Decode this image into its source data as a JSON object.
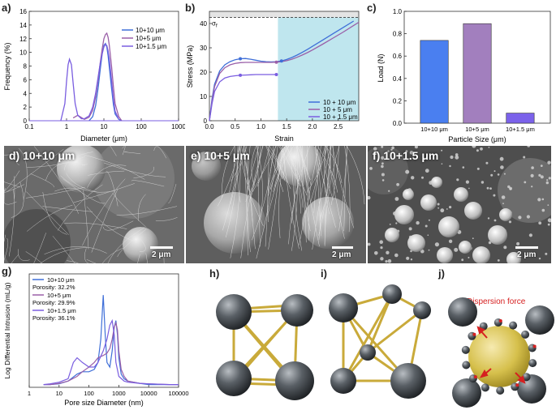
{
  "panels": {
    "a": "a)",
    "b": "b)",
    "c": "c)",
    "d": "d)",
    "e": "e)",
    "f": "f)",
    "g": "g)",
    "h": "h)",
    "i": "i)",
    "j": "j)"
  },
  "chart_data": [
    {
      "id": "a",
      "type": "line",
      "title": "",
      "xlabel": "Diameter (μm)",
      "ylabel": "Frequency (%)",
      "xscale": "log",
      "xlim": [
        0.1,
        1000
      ],
      "ylim": [
        0,
        16
      ],
      "xticks": [
        "0.1",
        "1",
        "10",
        "100",
        "1000"
      ],
      "yticks": [
        "0",
        "2",
        "4",
        "6",
        "8",
        "10",
        "12",
        "14",
        "16"
      ],
      "legend_position": "top-right",
      "series": [
        {
          "name": "10+10 μm",
          "color": "#3f6fd8",
          "x": [
            4,
            5,
            6,
            7,
            8,
            9,
            10,
            11,
            12,
            13,
            14,
            16,
            18,
            20,
            25,
            30
          ],
          "y": [
            0,
            0.6,
            2.2,
            4.8,
            7.5,
            9.8,
            11.0,
            11.3,
            10.8,
            9.5,
            7.8,
            4.8,
            2.4,
            1.0,
            0.2,
            0
          ]
        },
        {
          "name": "10+5 μm",
          "color": "#9a5fa8",
          "x": [
            1.5,
            2,
            3,
            4,
            5,
            6,
            7,
            8,
            9,
            10,
            11,
            12,
            13,
            14,
            16,
            18,
            20,
            25,
            30
          ],
          "y": [
            0.4,
            0.8,
            0.2,
            0.5,
            1.5,
            3.5,
            6.0,
            8.5,
            10.5,
            12.0,
            12.6,
            12.8,
            12.2,
            11.0,
            8.0,
            5.0,
            2.5,
            0.6,
            0
          ]
        },
        {
          "name": "10+1.5 μm",
          "color": "#7a5ee0",
          "x": [
            0.7,
            0.9,
            1.0,
            1.1,
            1.2,
            1.35,
            1.5,
            1.7,
            2.0,
            2.5,
            3,
            4,
            5,
            6,
            7,
            8,
            9,
            10,
            11,
            12,
            13,
            14,
            16,
            18,
            20,
            25
          ],
          "y": [
            0,
            2.5,
            5.8,
            8.2,
            9.0,
            8.2,
            5.5,
            2.5,
            0.8,
            0.3,
            0.3,
            0.7,
            2.0,
            4.0,
            6.4,
            8.4,
            9.8,
            10.8,
            11.2,
            11.0,
            10.2,
            9.0,
            6.0,
            3.2,
            1.4,
            0.2
          ]
        }
      ]
    },
    {
      "id": "b",
      "type": "line",
      "title": "",
      "xlabel": "Strain",
      "ylabel": "Stress (MPa)",
      "xlim": [
        0,
        2.9
      ],
      "ylim": [
        0,
        45
      ],
      "xticks": [
        "0.0",
        "0.5",
        "1.0",
        "1.5",
        "2.0",
        "2.5"
      ],
      "yticks": [
        "0",
        "10",
        "20",
        "30",
        "40"
      ],
      "threshold_label": "σ",
      "threshold_subscript": "f",
      "threshold_y": 42.5,
      "shaded_start_x": 1.33,
      "legend_position": "bottom-right",
      "series": [
        {
          "name": "10 + 10 μm",
          "color": "#3f6fd8",
          "x": [
            0,
            0.05,
            0.1,
            0.2,
            0.3,
            0.4,
            0.5,
            0.6,
            0.7,
            0.8,
            0.9,
            1.0,
            1.1,
            1.2,
            1.3,
            1.4,
            1.5,
            1.6,
            1.7,
            1.8,
            1.9,
            2.0,
            2.2,
            2.4,
            2.6,
            2.8
          ],
          "y": [
            0,
            9,
            15,
            20.5,
            23,
            24.3,
            25.1,
            25.5,
            25.6,
            25.3,
            24.9,
            24.5,
            24.3,
            24.2,
            24.3,
            24.6,
            25.2,
            26.0,
            27.0,
            28.1,
            29.3,
            30.6,
            33.2,
            35.8,
            38.4,
            41.0
          ]
        },
        {
          "name": "10 + 5 μm",
          "color": "#9a5fa8",
          "x": [
            0,
            0.05,
            0.1,
            0.2,
            0.3,
            0.4,
            0.5,
            0.6,
            0.7,
            0.8,
            0.9,
            1.0,
            1.1,
            1.2,
            1.3,
            1.4,
            1.5,
            1.6,
            1.7,
            1.8,
            1.9,
            2.0,
            2.2,
            2.4,
            2.6,
            2.8,
            2.9
          ],
          "y": [
            0,
            8,
            14,
            19.5,
            21.8,
            23.0,
            23.6,
            23.9,
            24.0,
            24.0,
            24.0,
            24.0,
            24.0,
            24.0,
            24.1,
            24.3,
            24.7,
            25.3,
            26.1,
            27.0,
            28.0,
            29.1,
            31.5,
            34.0,
            36.5,
            39.2,
            40.5
          ]
        },
        {
          "name": "10 + 1.5 μm",
          "color": "#7a5ee0",
          "x": [
            0,
            0.05,
            0.1,
            0.2,
            0.3,
            0.4,
            0.5,
            0.6,
            0.7,
            0.8,
            0.9,
            1.0,
            1.1,
            1.2,
            1.3
          ],
          "y": [
            0,
            7,
            12,
            16,
            17.6,
            18.2,
            18.5,
            18.7,
            18.8,
            18.9,
            19.0,
            19.0,
            19.0,
            19.0,
            19.0
          ]
        }
      ],
      "markers": [
        {
          "series": 0,
          "x": 0.6,
          "y": 25.5
        },
        {
          "series": 0,
          "x": 1.4,
          "y": 24.6
        },
        {
          "series": 1,
          "x": 1.3,
          "y": 24.1
        },
        {
          "series": 2,
          "x": 0.6,
          "y": 18.7
        },
        {
          "series": 2,
          "x": 1.3,
          "y": 19.0
        }
      ]
    },
    {
      "id": "c",
      "type": "bar",
      "title": "",
      "xlabel": "Particle Size (μm)",
      "ylabel": "Load (N)",
      "ylim": [
        0,
        1.0
      ],
      "yticks": [
        "0.0",
        "0.2",
        "0.4",
        "0.6",
        "0.8",
        "1.0"
      ],
      "categories": [
        "10+10 μm",
        "10+5 μm",
        "10+1.5 μm"
      ],
      "values": [
        0.74,
        0.89,
        0.09
      ],
      "colors": [
        "#4a7ff0",
        "#a27fbe",
        "#7b62ea"
      ]
    },
    {
      "id": "g",
      "type": "line",
      "title": "",
      "xlabel": "Pore size Diameter (nm)",
      "ylabel": "Log Differential Intrusion (mL/g)",
      "xscale": "log",
      "xlim": [
        1,
        100000
      ],
      "xticks": [
        "1",
        "10",
        "100",
        "1000",
        "10000",
        "100000"
      ],
      "legend_position": "top-left",
      "series": [
        {
          "name": "10+10 μm",
          "porosity": "Porosity: 32.2%",
          "color": "#3f6fd8",
          "x": [
            3,
            5,
            10,
            20,
            40,
            60,
            100,
            150,
            200,
            250,
            300,
            350,
            400,
            500,
            600,
            700,
            800,
            900,
            1000,
            1200,
            1500,
            2000,
            5000,
            10000,
            50000,
            100000
          ],
          "y": [
            0.005,
            0.005,
            0.008,
            0.02,
            0.05,
            0.06,
            0.06,
            0.07,
            0.1,
            0.2,
            0.39,
            0.22,
            0.1,
            0.08,
            0.15,
            0.25,
            0.28,
            0.22,
            0.12,
            0.05,
            0.03,
            0.02,
            0.01,
            0.005,
            0.005,
            0.005
          ]
        },
        {
          "name": "10+5 μm",
          "porosity": "Porosity: 29.9%",
          "color": "#9a5fa8",
          "x": [
            3,
            5,
            10,
            20,
            40,
            60,
            100,
            150,
            200,
            300,
            400,
            500,
            600,
            700,
            800,
            900,
            1000,
            1200,
            1500,
            2000,
            5000,
            10000,
            50000,
            100000
          ],
          "y": [
            0.005,
            0.005,
            0.01,
            0.02,
            0.04,
            0.06,
            0.08,
            0.1,
            0.12,
            0.13,
            0.14,
            0.16,
            0.2,
            0.25,
            0.27,
            0.24,
            0.15,
            0.07,
            0.04,
            0.02,
            0.01,
            0.008,
            0.005,
            0.005
          ]
        },
        {
          "name": "10+1.5 μm",
          "porosity": "Porosity: 36.1%",
          "color": "#7a5ee0",
          "x": [
            3,
            5,
            10,
            20,
            30,
            40,
            60,
            100,
            150,
            200,
            300,
            400,
            500,
            600,
            700,
            800,
            1000,
            1500,
            2000,
            5000,
            10000,
            50000,
            100000
          ],
          "y": [
            0.005,
            0.008,
            0.015,
            0.03,
            0.1,
            0.12,
            0.1,
            0.08,
            0.08,
            0.1,
            0.15,
            0.2,
            0.26,
            0.28,
            0.22,
            0.1,
            0.04,
            0.02,
            0.015,
            0.01,
            0.008,
            0.005,
            0.005
          ]
        }
      ]
    }
  ],
  "sem": {
    "d": {
      "label": "d) 10+10 μm",
      "scale": "2 μm"
    },
    "e": {
      "label": "e) 10+5 μm",
      "scale": "2 μm"
    },
    "f": {
      "label": "f) 10+1.5 μm",
      "scale": "2 μm"
    }
  },
  "diagram_j": {
    "annotation": "Dispersion force"
  },
  "colors": {
    "accent_blue": "#3f6fd8",
    "accent_purple": "#9a5fa8",
    "accent_violet": "#7a5ee0",
    "shade": "#bfe6ee",
    "rod": "#c9aa3a",
    "force_red": "#d62020"
  }
}
